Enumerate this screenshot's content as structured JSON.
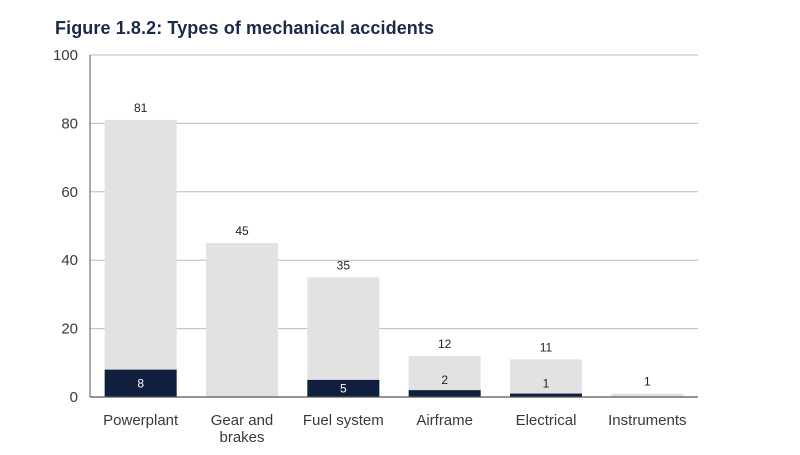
{
  "title": "Figure 1.8.2: Types of mechanical accidents",
  "chart_data": {
    "type": "bar",
    "categories": [
      [
        "Powerplant"
      ],
      [
        "Gear and",
        "brakes"
      ],
      [
        "Fuel system"
      ],
      [
        "Airframe"
      ],
      [
        "Electrical"
      ],
      [
        "Instruments"
      ]
    ],
    "series": [
      {
        "values": [
          81,
          45,
          35,
          12,
          11,
          1
        ],
        "color": "#e2e2e2"
      },
      {
        "values": [
          8,
          0,
          5,
          2,
          1,
          0
        ],
        "color": "#0f1f3d"
      }
    ],
    "total_labels": [
      "81",
      "45",
      "35",
      "12",
      "11",
      "1"
    ],
    "inner_labels": [
      "8",
      "",
      "5",
      "2",
      "1",
      ""
    ],
    "ylim": [
      0,
      100
    ],
    "yticks": [
      0,
      20,
      40,
      60,
      80,
      100
    ],
    "grid": true,
    "colors": {
      "grid": "#bdbdbd",
      "axis": "#555555"
    }
  }
}
